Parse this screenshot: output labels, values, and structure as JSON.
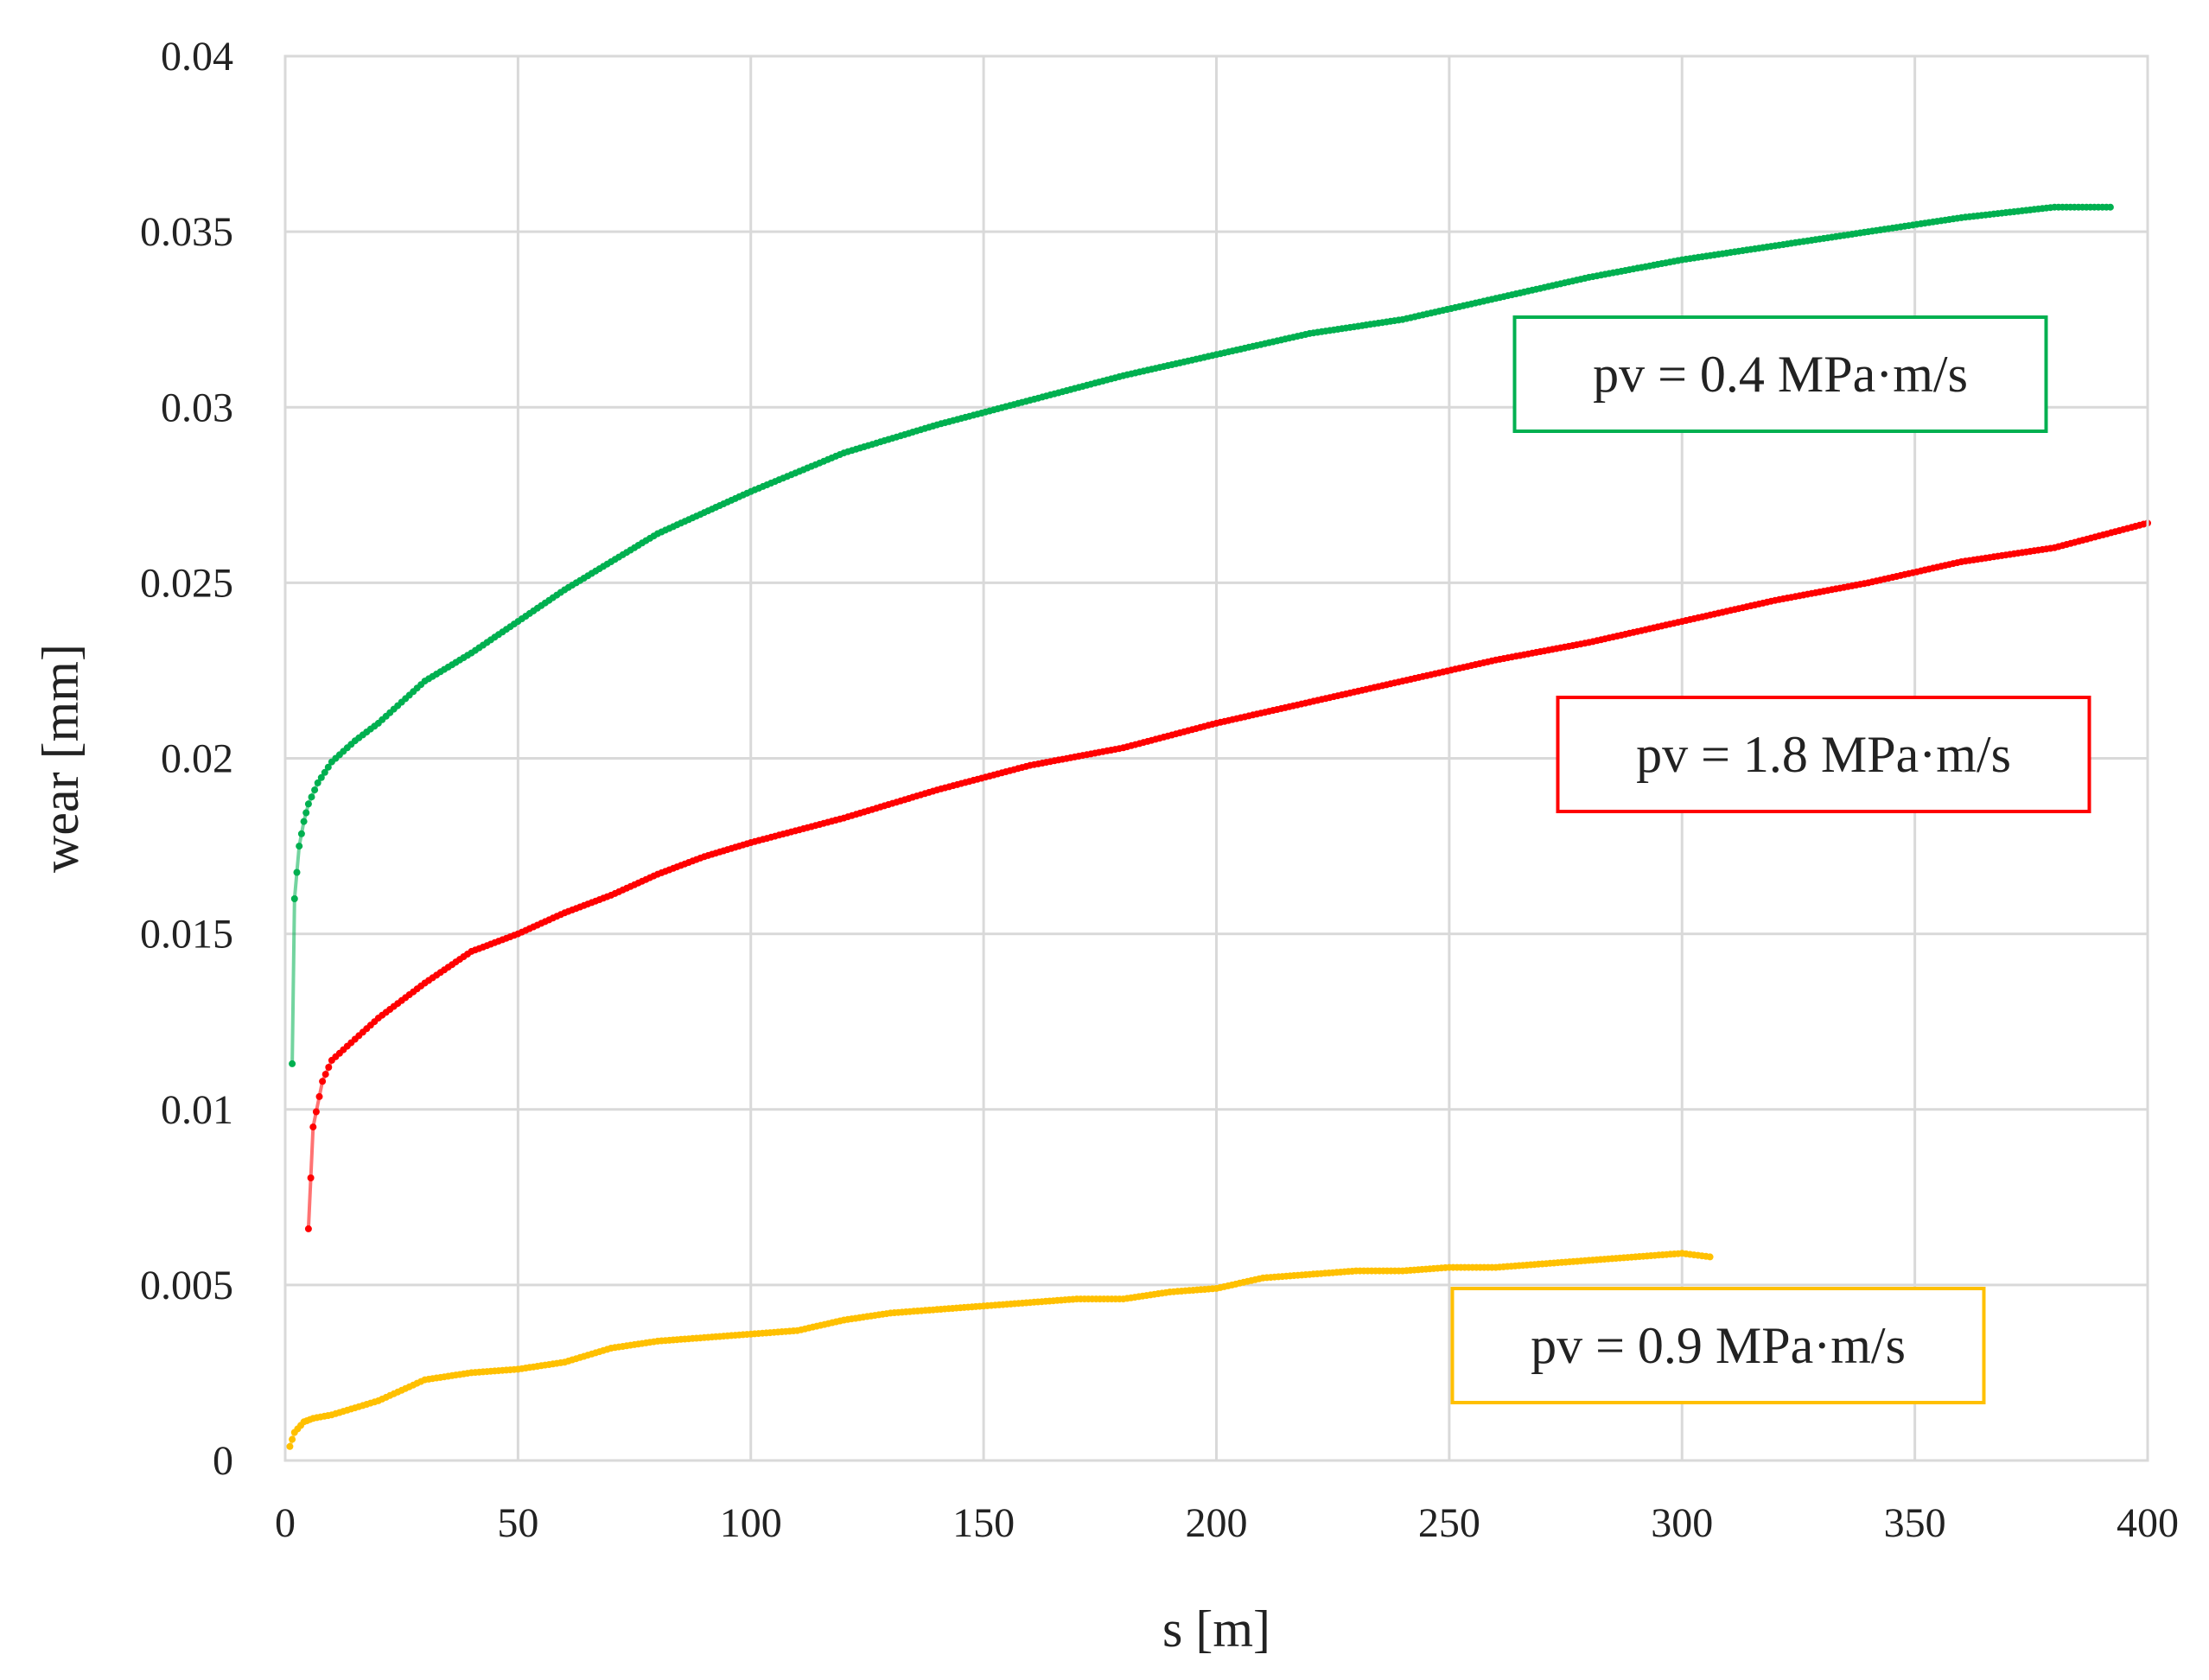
{
  "chart_data": {
    "type": "scatter",
    "title": "",
    "xlabel": "s [m]",
    "ylabel": "wear [mm]",
    "xlim": [
      0,
      400
    ],
    "ylim": [
      0,
      0.04
    ],
    "x_ticks": [
      0,
      50,
      100,
      150,
      200,
      250,
      300,
      350,
      400
    ],
    "y_ticks": [
      0,
      0.005,
      0.01,
      0.015,
      0.02,
      0.025,
      0.03,
      0.035,
      0.04
    ],
    "x_tick_labels": [
      "0",
      "50",
      "100",
      "150",
      "200",
      "250",
      "300",
      "350",
      "400"
    ],
    "y_tick_labels": [
      "0",
      "0.005",
      "0.01",
      "0.015",
      "0.02",
      "0.025",
      "0.03",
      "0.035",
      "0.04"
    ],
    "grid": true,
    "series": [
      {
        "name": "pv = 0.4 MPa·m/s",
        "color": "#00b050",
        "legend_position": "upper-right",
        "x": [
          1.5,
          2,
          3,
          4,
          5,
          7,
          10,
          15,
          20,
          30,
          40,
          50,
          60,
          70,
          80,
          90,
          100,
          120,
          140,
          160,
          180,
          200,
          220,
          240,
          260,
          280,
          300,
          320,
          340,
          360,
          380,
          392
        ],
        "y": [
          0.0113,
          0.016,
          0.0175,
          0.0182,
          0.0187,
          0.0193,
          0.0199,
          0.0205,
          0.021,
          0.0222,
          0.023,
          0.0239,
          0.0248,
          0.0256,
          0.0264,
          0.027,
          0.0276,
          0.0287,
          0.0295,
          0.0302,
          0.0309,
          0.0315,
          0.0321,
          0.0325,
          0.0331,
          0.0337,
          0.0342,
          0.0346,
          0.035,
          0.0354,
          0.0357,
          0.0357
        ]
      },
      {
        "name": "pv = 1.8 MPa·m/s",
        "color": "#ff0000",
        "legend_position": "center-right",
        "x": [
          5,
          6,
          8,
          10,
          15,
          20,
          30,
          40,
          50,
          60,
          70,
          80,
          90,
          100,
          120,
          140,
          160,
          180,
          200,
          220,
          240,
          260,
          280,
          300,
          320,
          340,
          360,
          380,
          400
        ],
        "y": [
          0.0066,
          0.0095,
          0.0108,
          0.0114,
          0.012,
          0.0126,
          0.0136,
          0.0145,
          0.015,
          0.0156,
          0.0161,
          0.0167,
          0.0172,
          0.0176,
          0.0183,
          0.0191,
          0.0198,
          0.0203,
          0.021,
          0.0216,
          0.0222,
          0.0228,
          0.0233,
          0.0239,
          0.0245,
          0.025,
          0.0256,
          0.026,
          0.0267
        ]
      },
      {
        "name": "pv = 0.9 MPa·m/s",
        "color": "#ffc000",
        "legend_position": "lower-right",
        "x": [
          1,
          2,
          4,
          6,
          10,
          15,
          20,
          25,
          30,
          40,
          50,
          60,
          70,
          80,
          90,
          100,
          110,
          120,
          130,
          140,
          150,
          160,
          170,
          180,
          190,
          200,
          210,
          220,
          230,
          240,
          250,
          260,
          270,
          280,
          290,
          300,
          306
        ],
        "y": [
          0.0004,
          0.0008,
          0.0011,
          0.0012,
          0.0013,
          0.0015,
          0.0017,
          0.002,
          0.0023,
          0.0025,
          0.0026,
          0.0028,
          0.0032,
          0.0034,
          0.0035,
          0.0036,
          0.0037,
          0.004,
          0.0042,
          0.0043,
          0.0044,
          0.0045,
          0.0046,
          0.0046,
          0.0048,
          0.0049,
          0.0052,
          0.0053,
          0.0054,
          0.0054,
          0.0055,
          0.0055,
          0.0056,
          0.0057,
          0.0058,
          0.0059,
          0.0058
        ]
      }
    ]
  }
}
